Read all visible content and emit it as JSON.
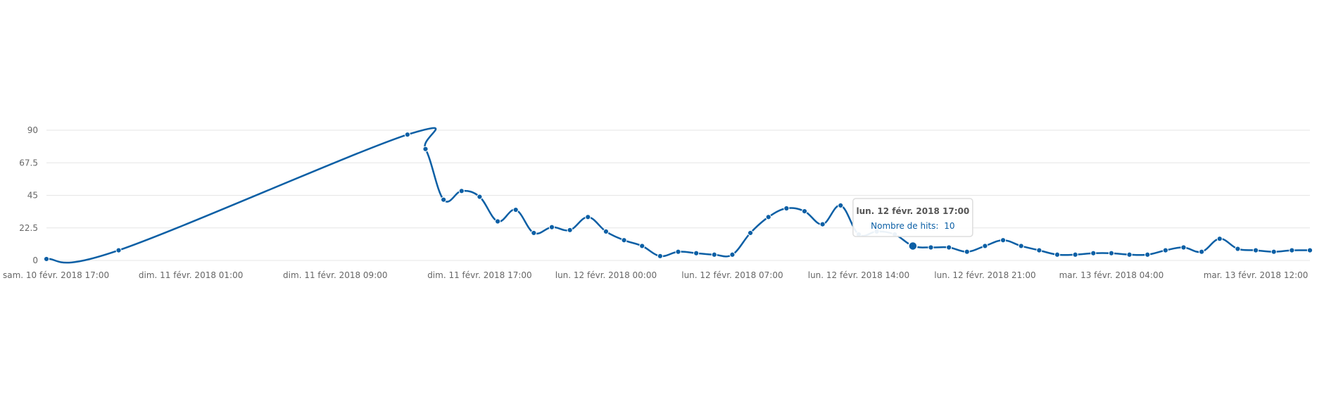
{
  "chart_data": {
    "type": "line",
    "x_tick_labels": [
      "sam. 10 févr. 2018 17:00",
      "dim. 11 févr. 2018 01:00",
      "dim. 11 févr. 2018 09:00",
      "dim. 11 févr. 2018 17:00",
      "lun. 12 févr. 2018 00:00",
      "lun. 12 févr. 2018 07:00",
      "lun. 12 févr. 2018 14:00",
      "lun. 12 févr. 2018 21:00",
      "mar. 13 févr. 2018 04:00",
      "mar. 13 févr. 2018 12:00"
    ],
    "x_tick_dates": [
      "2018-02-10 17:00",
      "2018-02-11 01:00",
      "2018-02-11 09:00",
      "2018-02-11 17:00",
      "2018-02-12 00:00",
      "2018-02-12 07:00",
      "2018-02-12 14:00",
      "2018-02-12 21:00",
      "2018-02-13 04:00",
      "2018-02-13 12:00"
    ],
    "y_ticks": [
      0,
      22.5,
      45,
      67.5,
      90
    ],
    "ylim": [
      0,
      90
    ],
    "grid": true,
    "series": [
      {
        "name": "Nombre de hits",
        "color": "#0b5fa5",
        "points": [
          {
            "x": "2018-02-10 17:00",
            "y": 1
          },
          {
            "x": "2018-02-10 21:00",
            "y": 7
          },
          {
            "x": "2018-02-11 13:00",
            "y": 87
          },
          {
            "x": "2018-02-11 14:00",
            "y": 77
          },
          {
            "x": "2018-02-11 15:00",
            "y": 42
          },
          {
            "x": "2018-02-11 16:00",
            "y": 48
          },
          {
            "x": "2018-02-11 17:00",
            "y": 44
          },
          {
            "x": "2018-02-11 18:00",
            "y": 27
          },
          {
            "x": "2018-02-11 19:00",
            "y": 35
          },
          {
            "x": "2018-02-11 20:00",
            "y": 19
          },
          {
            "x": "2018-02-11 21:00",
            "y": 23
          },
          {
            "x": "2018-02-11 22:00",
            "y": 21
          },
          {
            "x": "2018-02-11 23:00",
            "y": 30
          },
          {
            "x": "2018-02-12 00:00",
            "y": 20
          },
          {
            "x": "2018-02-12 01:00",
            "y": 14
          },
          {
            "x": "2018-02-12 02:00",
            "y": 10
          },
          {
            "x": "2018-02-12 03:00",
            "y": 3
          },
          {
            "x": "2018-02-12 04:00",
            "y": 6
          },
          {
            "x": "2018-02-12 05:00",
            "y": 5
          },
          {
            "x": "2018-02-12 06:00",
            "y": 4
          },
          {
            "x": "2018-02-12 07:00",
            "y": 4
          },
          {
            "x": "2018-02-12 08:00",
            "y": 19
          },
          {
            "x": "2018-02-12 09:00",
            "y": 30
          },
          {
            "x": "2018-02-12 10:00",
            "y": 36
          },
          {
            "x": "2018-02-12 11:00",
            "y": 34
          },
          {
            "x": "2018-02-12 12:00",
            "y": 25
          },
          {
            "x": "2018-02-12 13:00",
            "y": 38
          },
          {
            "x": "2018-02-12 14:00",
            "y": 18
          },
          {
            "x": "2018-02-12 15:00",
            "y": 20
          },
          {
            "x": "2018-02-12 16:00",
            "y": 18
          },
          {
            "x": "2018-02-12 17:00",
            "y": 10
          },
          {
            "x": "2018-02-12 18:00",
            "y": 9
          },
          {
            "x": "2018-02-12 19:00",
            "y": 9
          },
          {
            "x": "2018-02-12 20:00",
            "y": 6
          },
          {
            "x": "2018-02-12 21:00",
            "y": 10
          },
          {
            "x": "2018-02-12 22:00",
            "y": 14
          },
          {
            "x": "2018-02-12 23:00",
            "y": 10
          },
          {
            "x": "2018-02-13 00:00",
            "y": 7
          },
          {
            "x": "2018-02-13 01:00",
            "y": 4
          },
          {
            "x": "2018-02-13 02:00",
            "y": 4
          },
          {
            "x": "2018-02-13 03:00",
            "y": 5
          },
          {
            "x": "2018-02-13 04:00",
            "y": 5
          },
          {
            "x": "2018-02-13 05:00",
            "y": 4
          },
          {
            "x": "2018-02-13 06:00",
            "y": 4
          },
          {
            "x": "2018-02-13 07:00",
            "y": 7
          },
          {
            "x": "2018-02-13 08:00",
            "y": 9
          },
          {
            "x": "2018-02-13 09:00",
            "y": 6
          },
          {
            "x": "2018-02-13 10:00",
            "y": 15
          },
          {
            "x": "2018-02-13 11:00",
            "y": 8
          },
          {
            "x": "2018-02-13 12:00",
            "y": 7
          },
          {
            "x": "2018-02-13 13:00",
            "y": 6
          },
          {
            "x": "2018-02-13 14:00",
            "y": 7
          },
          {
            "x": "2018-02-13 15:00",
            "y": 7
          }
        ]
      }
    ],
    "tooltip": {
      "title": "lun. 12 févr. 2018 17:00",
      "series_label": "Nombre de hits:",
      "value": 10,
      "point_x": "2018-02-12 17:00"
    }
  }
}
